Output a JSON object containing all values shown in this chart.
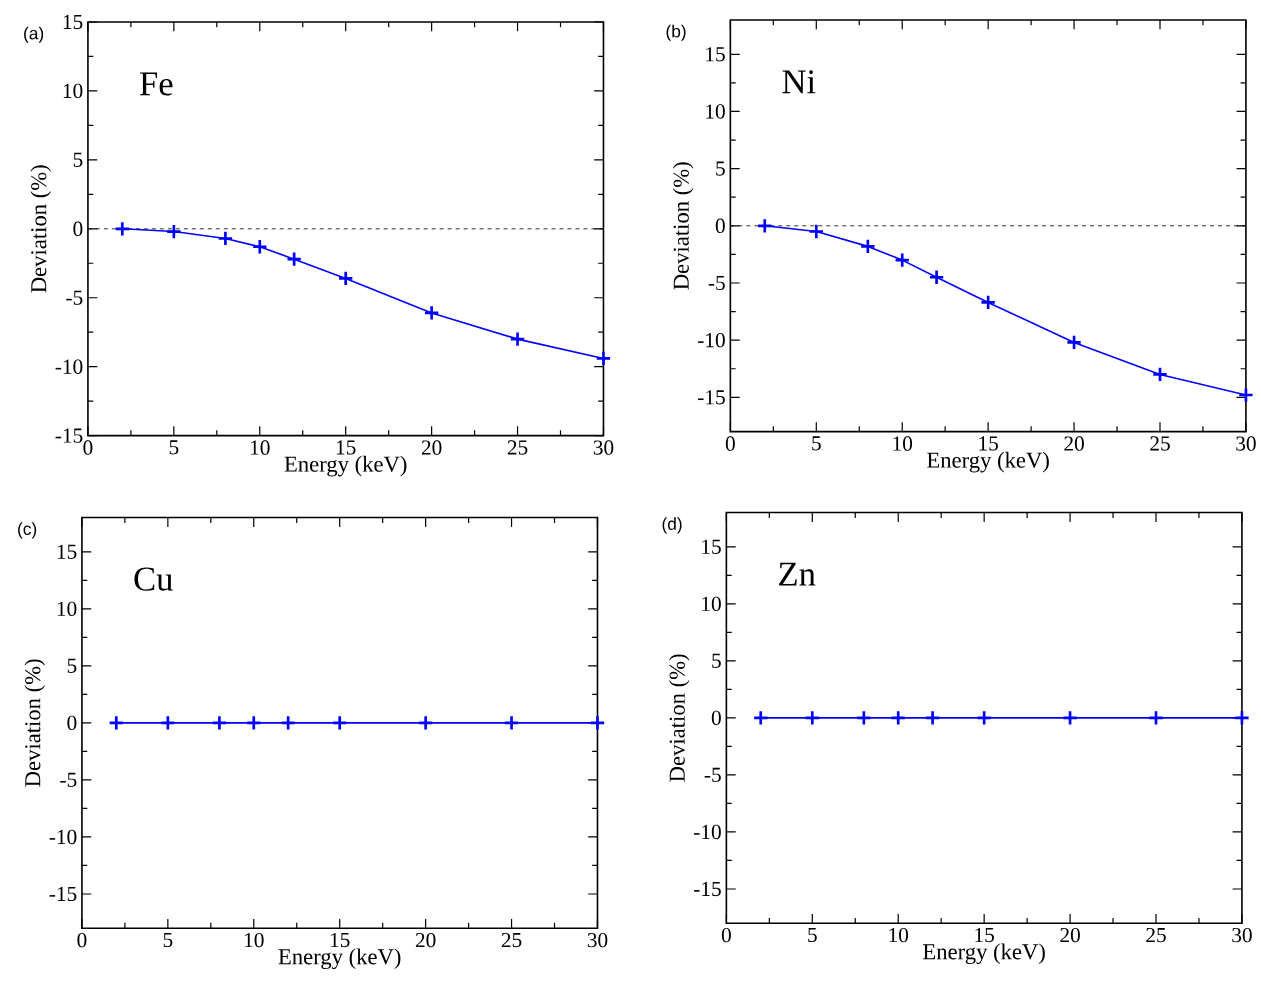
{
  "chart_data": [
    {
      "type": "line",
      "x": [
        2,
        5,
        8,
        10,
        12,
        15,
        20,
        25,
        30
      ],
      "xlabel": "Energy  (keV)",
      "ylabel": "Deviation (%)",
      "annotations": [
        "(a)",
        "Fe"
      ],
      "marker": "cross",
      "series": [
        {
          "color": "#0000ff",
          "values": [
            0,
            -0.2,
            -0.7,
            -1.3,
            -2.2,
            -3.6,
            -6.1,
            -8.0,
            -9.4
          ]
        }
      ],
      "xlim": [
        0,
        30
      ],
      "xticks": [
        0,
        5,
        10,
        15,
        20,
        25,
        30
      ],
      "ylim": [
        -15,
        15
      ],
      "yticks": [
        -15,
        -10,
        -5,
        0,
        5,
        10,
        15
      ],
      "ref_lines": [
        {
          "axis": "y",
          "value": 0,
          "color": "#000000",
          "line_style": "dashed"
        }
      ]
    },
    {
      "type": "line",
      "x": [
        2,
        5,
        8,
        10,
        12,
        15,
        20,
        25,
        30
      ],
      "xlabel": "Energy  (keV)",
      "ylabel": "Deviation (%)",
      "annotations": [
        "(b)",
        "Ni"
      ],
      "marker": "cross",
      "series": [
        {
          "color": "#0000ff",
          "values": [
            0,
            -0.5,
            -1.8,
            -3.0,
            -4.5,
            -6.7,
            -10.2,
            -13.0,
            -14.8
          ]
        }
      ],
      "xlim": [
        0,
        30
      ],
      "xticks": [
        0,
        5,
        10,
        15,
        20,
        25,
        30
      ],
      "ylim": [
        -18,
        18
      ],
      "yticks": [
        -15,
        -10,
        -5,
        0,
        5,
        10,
        15
      ],
      "ref_lines": [
        {
          "axis": "y",
          "value": 0,
          "color": "#000000",
          "line_style": "dashed"
        }
      ]
    },
    {
      "type": "line",
      "x": [
        2,
        5,
        8,
        10,
        12,
        15,
        20,
        25,
        30
      ],
      "xlabel": "Energy  (keV)",
      "ylabel": "Deviation (%)",
      "annotations": [
        "(c)",
        "Cu"
      ],
      "marker": "cross",
      "series": [
        {
          "color": "#0000ff",
          "values": [
            0,
            0,
            0,
            0,
            0,
            0,
            0,
            0,
            0
          ]
        }
      ],
      "xlim": [
        0,
        30
      ],
      "xticks": [
        0,
        5,
        10,
        15,
        20,
        25,
        30
      ],
      "ylim": [
        -18,
        18
      ],
      "yticks": [
        -15,
        -10,
        -5,
        0,
        5,
        10,
        15
      ]
    },
    {
      "type": "line",
      "x": [
        2,
        5,
        8,
        10,
        12,
        15,
        20,
        25,
        30
      ],
      "xlabel": "Energy  (keV)",
      "ylabel": "Deviation (%)",
      "annotations": [
        "(d)",
        "Zn"
      ],
      "marker": "cross",
      "series": [
        {
          "color": "#0000ff",
          "values": [
            0,
            0,
            0,
            0,
            0,
            0,
            0,
            0,
            0
          ]
        }
      ],
      "xlim": [
        0,
        30
      ],
      "xticks": [
        0,
        5,
        10,
        15,
        20,
        25,
        30
      ],
      "ylim": [
        -18,
        18
      ],
      "yticks": [
        -15,
        -10,
        -5,
        0,
        5,
        10,
        15
      ]
    }
  ]
}
